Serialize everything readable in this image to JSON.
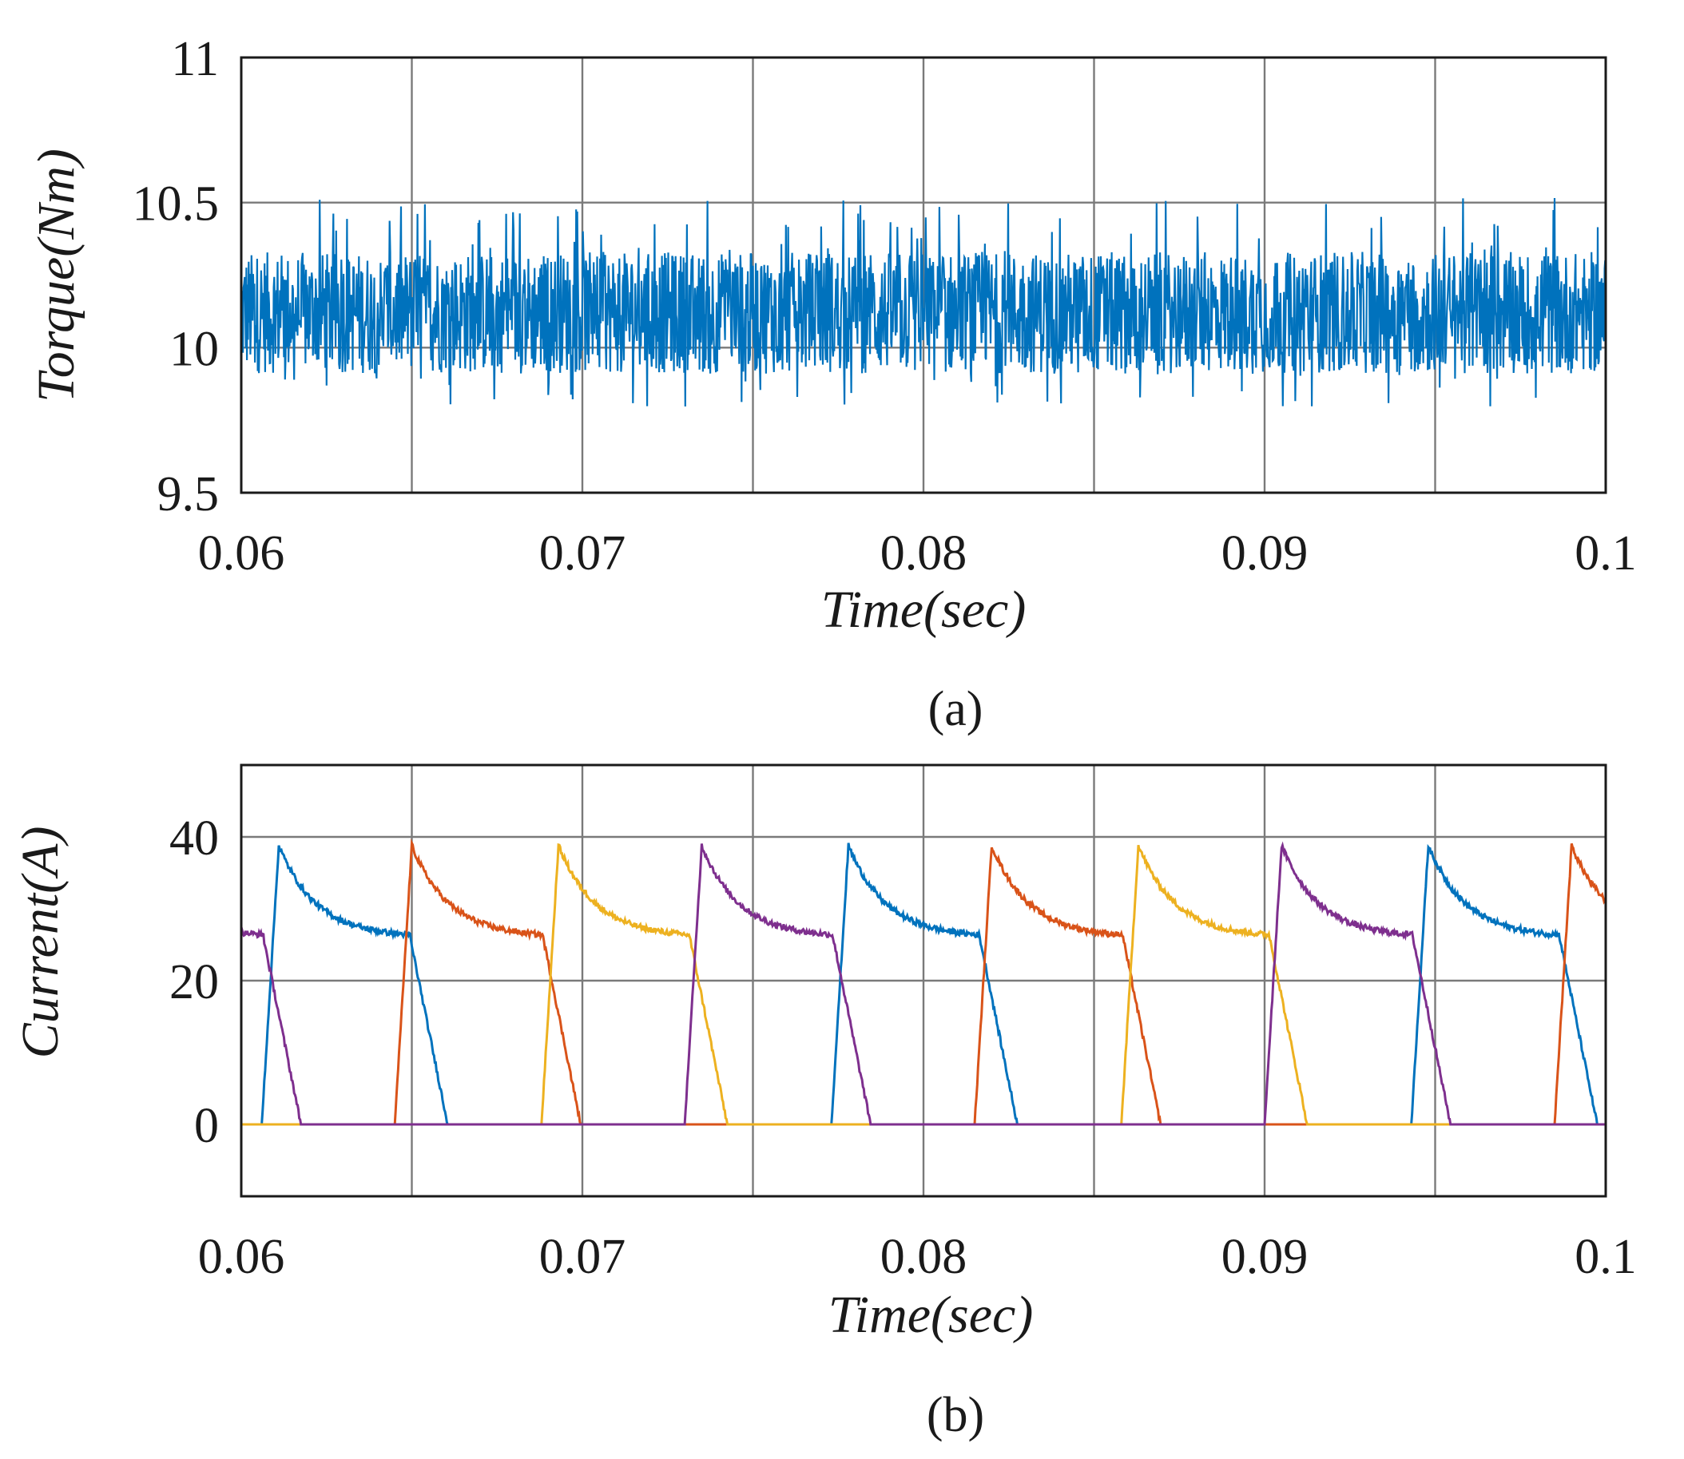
{
  "chart_data": [
    {
      "type": "line",
      "panel": "(a)",
      "xlabel": "Time(sec)",
      "ylabel": "Torque(Nm)",
      "xlim": [
        0.06,
        0.1
      ],
      "ylim": [
        9.5,
        11
      ],
      "xticks": [
        "0.06",
        "0.07",
        "0.08",
        "0.09",
        "0.1"
      ],
      "yticks": [
        "9.5",
        "10",
        "10.5",
        "11"
      ],
      "grid": true,
      "series": [
        {
          "color": "#0072BD",
          "mean": 10.12,
          "min": 9.73,
          "max": 10.54,
          "note_visible": "dense torque ripple between approx. 9.75 and 10.5 Nm"
        }
      ]
    },
    {
      "type": "line",
      "panel": "(b)",
      "xlabel": "Time(sec)",
      "ylabel": "Current(A)",
      "xlim": [
        0.06,
        0.1
      ],
      "ylim": [
        -10,
        50
      ],
      "xticks": [
        "0.06",
        "0.07",
        "0.08",
        "0.09",
        "0.1"
      ],
      "yticks": [
        "0",
        "20",
        "40"
      ],
      "grid": true,
      "phase_period": 0.0138,
      "pulse_onsets": [
        0.0606,
        0.0645,
        0.0688,
        0.073,
        0.0773,
        0.0815,
        0.0858,
        0.09,
        0.0943,
        0.0985
      ],
      "pulse_shape": {
        "rise_duration": 0.0005,
        "peak": 38.8,
        "plateau": 26.0,
        "plateau_end_offset": 0.00435,
        "fall_duration": 0.0011
      },
      "series": [
        {
          "color": "#0072BD",
          "onsets": [
            0.0606,
            0.0773,
            0.0943
          ]
        },
        {
          "color": "#D95319",
          "onsets": [
            0.0645,
            0.0815,
            0.0985
          ]
        },
        {
          "color": "#EDB120",
          "onsets": [
            0.0688,
            0.0858
          ]
        },
        {
          "color": "#7E2F8E",
          "onsets": [
            0.0563,
            0.073,
            0.09
          ]
        }
      ]
    }
  ],
  "captions": {
    "a": "(a)",
    "b": "(b)"
  },
  "axis_text": {
    "a": {
      "xlabel": "Time(sec)",
      "ylabel": "Torque(Nm)"
    },
    "b": {
      "xlabel": "Time(sec)",
      "ylabel": "Current(A)"
    }
  }
}
